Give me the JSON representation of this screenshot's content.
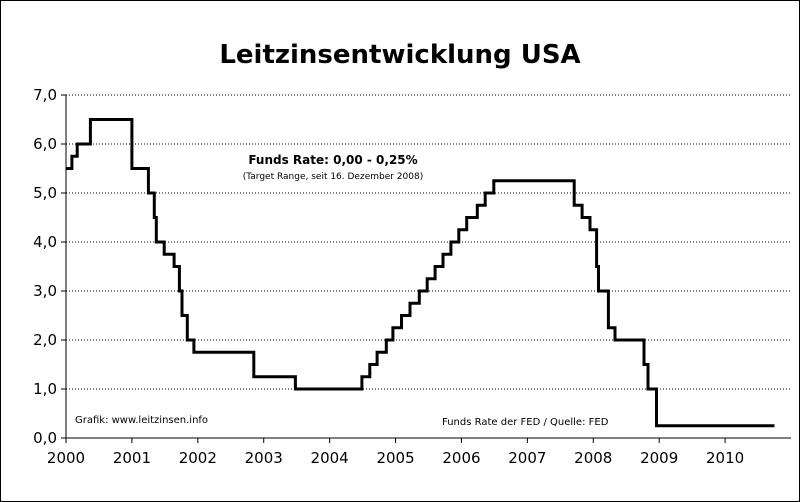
{
  "chart_data": {
    "type": "line",
    "step": true,
    "title": "Leitzinsentwicklung USA",
    "xlabel": "",
    "ylabel": "",
    "xlim": [
      2000,
      2011
    ],
    "ylim": [
      0,
      7
    ],
    "yticks": [
      {
        "value": 0,
        "label": "0,0"
      },
      {
        "value": 1,
        "label": "1,0"
      },
      {
        "value": 2,
        "label": "2,0"
      },
      {
        "value": 3,
        "label": "3,0"
      },
      {
        "value": 4,
        "label": "4,0"
      },
      {
        "value": 5,
        "label": "5,0"
      },
      {
        "value": 6,
        "label": "6,0"
      },
      {
        "value": 7,
        "label": "7,0"
      }
    ],
    "xticks": [
      {
        "value": 2000,
        "label": "2000"
      },
      {
        "value": 2001,
        "label": "2001"
      },
      {
        "value": 2002,
        "label": "2002"
      },
      {
        "value": 2003,
        "label": "2003"
      },
      {
        "value": 2004,
        "label": "2004"
      },
      {
        "value": 2005,
        "label": "2005"
      },
      {
        "value": 2006,
        "label": "2006"
      },
      {
        "value": 2007,
        "label": "2007"
      },
      {
        "value": 2008,
        "label": "2008"
      },
      {
        "value": 2009,
        "label": "2009"
      },
      {
        "value": 2010,
        "label": "2010"
      }
    ],
    "grid": {
      "y": true,
      "style": "dotted"
    },
    "series": [
      {
        "color": "#000000",
        "points": [
          [
            2000.0,
            5.5
          ],
          [
            2000.09,
            5.75
          ],
          [
            2000.17,
            6.0
          ],
          [
            2000.37,
            6.5
          ],
          [
            2001.0,
            5.5
          ],
          [
            2001.25,
            5.0
          ],
          [
            2001.34,
            4.5
          ],
          [
            2001.37,
            4.0
          ],
          [
            2001.49,
            3.75
          ],
          [
            2001.64,
            3.5
          ],
          [
            2001.72,
            3.0
          ],
          [
            2001.76,
            2.5
          ],
          [
            2001.84,
            2.0
          ],
          [
            2001.94,
            1.75
          ],
          [
            2002.85,
            1.25
          ],
          [
            2003.48,
            1.0
          ],
          [
            2004.49,
            1.25
          ],
          [
            2004.61,
            1.5
          ],
          [
            2004.72,
            1.75
          ],
          [
            2004.86,
            2.0
          ],
          [
            2004.96,
            2.25
          ],
          [
            2005.09,
            2.5
          ],
          [
            2005.22,
            2.75
          ],
          [
            2005.36,
            3.0
          ],
          [
            2005.48,
            3.25
          ],
          [
            2005.6,
            3.5
          ],
          [
            2005.72,
            3.75
          ],
          [
            2005.84,
            4.0
          ],
          [
            2005.96,
            4.25
          ],
          [
            2006.08,
            4.5
          ],
          [
            2006.24,
            4.75
          ],
          [
            2006.36,
            5.0
          ],
          [
            2006.49,
            5.25
          ],
          [
            2007.71,
            4.75
          ],
          [
            2007.83,
            4.5
          ],
          [
            2007.95,
            4.25
          ],
          [
            2008.05,
            3.5
          ],
          [
            2008.08,
            3.0
          ],
          [
            2008.23,
            2.25
          ],
          [
            2008.33,
            2.0
          ],
          [
            2008.77,
            1.5
          ],
          [
            2008.83,
            1.0
          ],
          [
            2008.96,
            0.25
          ],
          [
            2010.75,
            0.25
          ]
        ]
      }
    ],
    "annotations": {
      "funds_rate": "Funds Rate: 0,00 - 0,25%",
      "target_range": "(Target Range, seit 16. Dezember 2008)",
      "grafik": "Grafik: www.leitzinsen.info",
      "quelle": "Funds Rate der FED / Quelle: FED"
    }
  }
}
